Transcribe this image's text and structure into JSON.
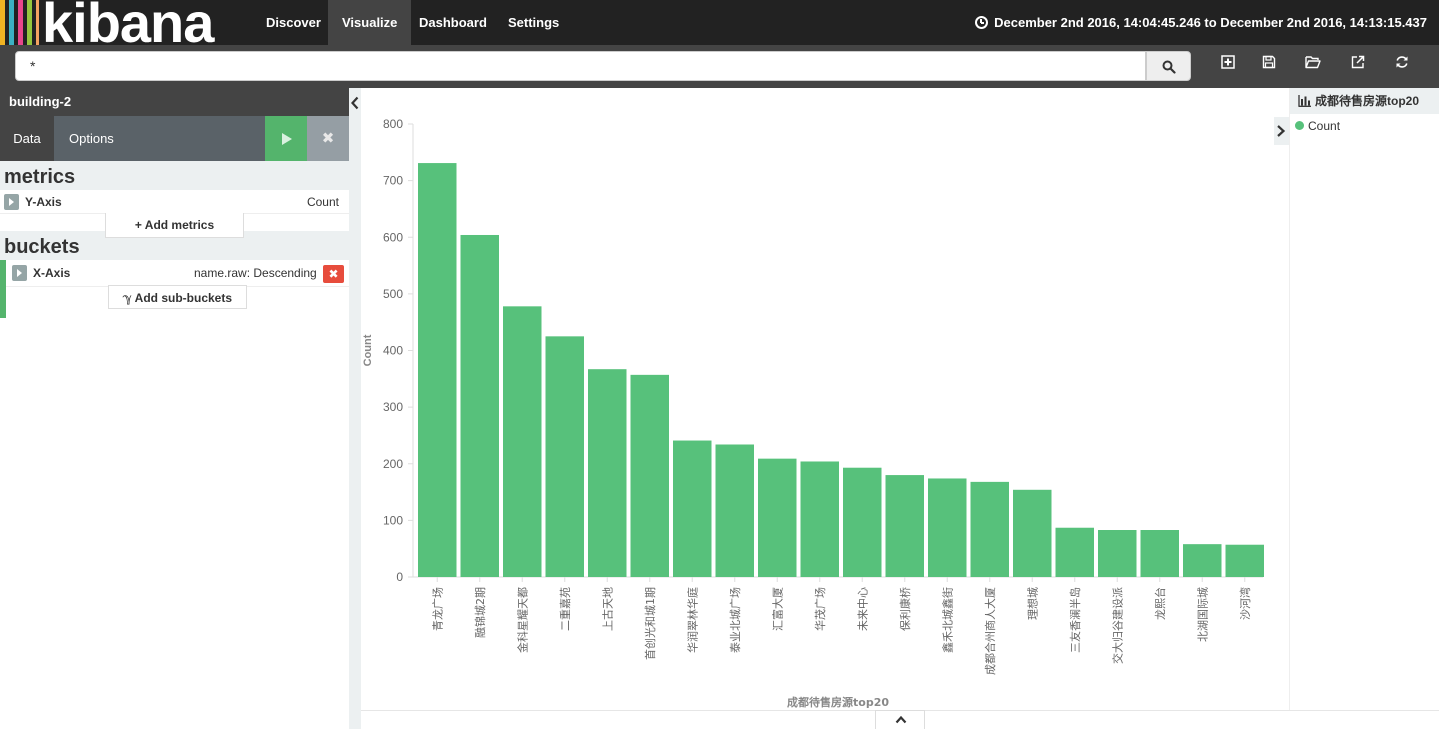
{
  "brand": {
    "name": "kibana",
    "stripe_colors": [
      "#f0b323",
      "#3cb1c3",
      "#e8478b",
      "#95c63d",
      "#f4a261"
    ]
  },
  "nav": {
    "tabs": [
      {
        "label": "Discover",
        "active": false
      },
      {
        "label": "Visualize",
        "active": true
      },
      {
        "label": "Dashboard",
        "active": false
      },
      {
        "label": "Settings",
        "active": false
      }
    ],
    "time_range": "December 2nd 2016, 14:04:45.246 to December 2nd 2016, 14:13:15.437",
    "time_icon": "clock-icon"
  },
  "search": {
    "query": "*",
    "button_icon": "search-icon"
  },
  "toolbar": {
    "icons": [
      "new-visualization-icon",
      "save-icon",
      "open-icon",
      "share-icon",
      "refresh-icon"
    ]
  },
  "sidebar": {
    "index_pattern": "building-2",
    "tabs": {
      "data": "Data",
      "options": "Options"
    },
    "apply_icon": "play-icon",
    "discard_icon": "close-icon",
    "discard_glyph": "✖",
    "metrics": {
      "heading": "metrics",
      "y_axis_label": "Y-Axis",
      "y_axis_value": "Count",
      "add_label": "+ Add metrics"
    },
    "buckets": {
      "heading": "buckets",
      "x_axis_label": "X-Axis",
      "x_axis_value": "name.raw: Descending",
      "remove_glyph": "✖",
      "add_label": "ℽ Add sub-buckets"
    }
  },
  "legend": {
    "title": "成都待售房源top20",
    "items": [
      {
        "label": "Count",
        "color": "#57c17b"
      }
    ]
  },
  "chart_data": {
    "type": "bar",
    "categories": [
      "青龙广场",
      "融锦城2期",
      "金科星耀天都",
      "二重嘉苑",
      "上古天地",
      "首创光和城1期",
      "华润翠林华庭",
      "泰业北城广场",
      "汇富大厦",
      "华茂广场",
      "未来中心",
      "保利康桥",
      "鑫禾北城鑫街",
      "成都合州商人大厦",
      "理想城",
      "三友香澜半岛",
      "交大归谷建设派",
      "龙熙台",
      "北湖国际城",
      "沙河湾"
    ],
    "values": [
      731,
      604,
      478,
      425,
      367,
      357,
      241,
      234,
      209,
      204,
      193,
      180,
      174,
      168,
      154,
      87,
      83,
      83,
      58,
      57
    ],
    "series": [
      {
        "name": "Count",
        "color": "#57c17b"
      }
    ],
    "xlabel": "成都待售房源top20",
    "ylabel": "Count",
    "ylim": [
      0,
      800
    ],
    "yticks": [
      0,
      100,
      200,
      300,
      400,
      500,
      600,
      700,
      800
    ],
    "grid": false,
    "legend_position": "right"
  }
}
